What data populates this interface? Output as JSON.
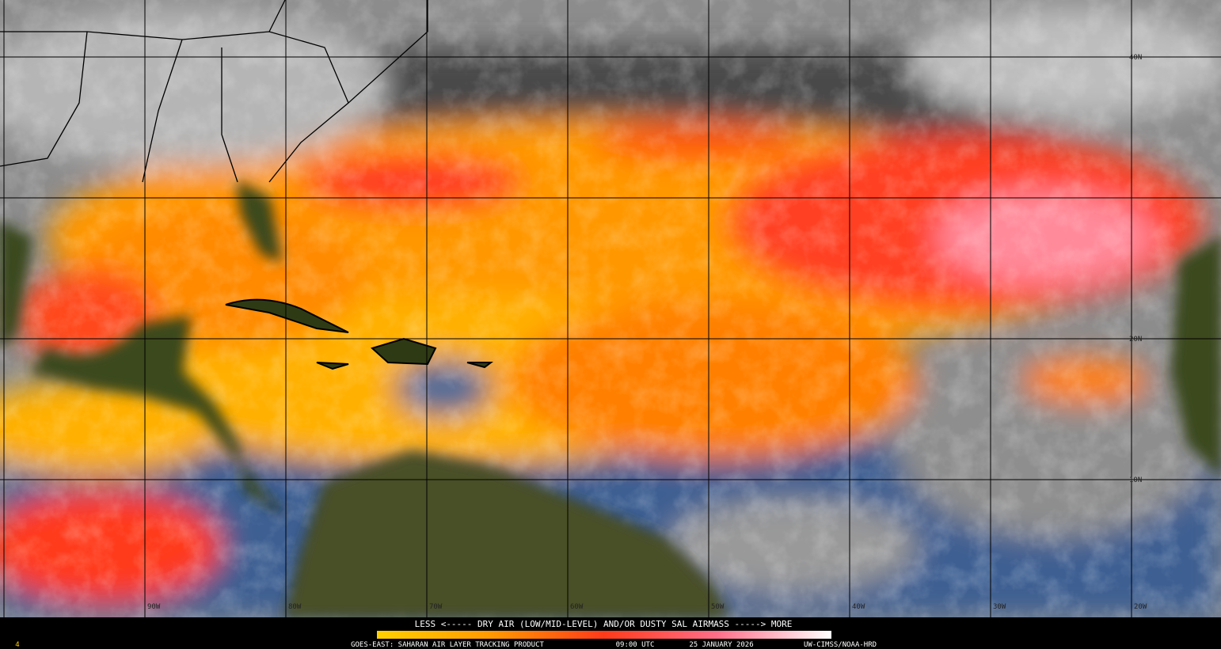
{
  "legend": {
    "text": "LESS <----- DRY AIR (LOW/MID-LEVEL) AND/OR DUSTY SAL AIRMASS -----> MORE"
  },
  "caption": {
    "product": "GOES-EAST: SAHARAN AIR LAYER TRACKING PRODUCT",
    "time": "09:00 UTC",
    "date": "25 JANUARY 2026",
    "credit": "UW-CIMSS/NOAA-HRD"
  },
  "frame_number": "4",
  "grid": {
    "lon_labels": [
      "90W",
      "80W",
      "70W",
      "60W",
      "50W",
      "40W",
      "30W",
      "20W"
    ],
    "lat_labels": [
      "40N",
      "20N",
      "10N"
    ]
  }
}
